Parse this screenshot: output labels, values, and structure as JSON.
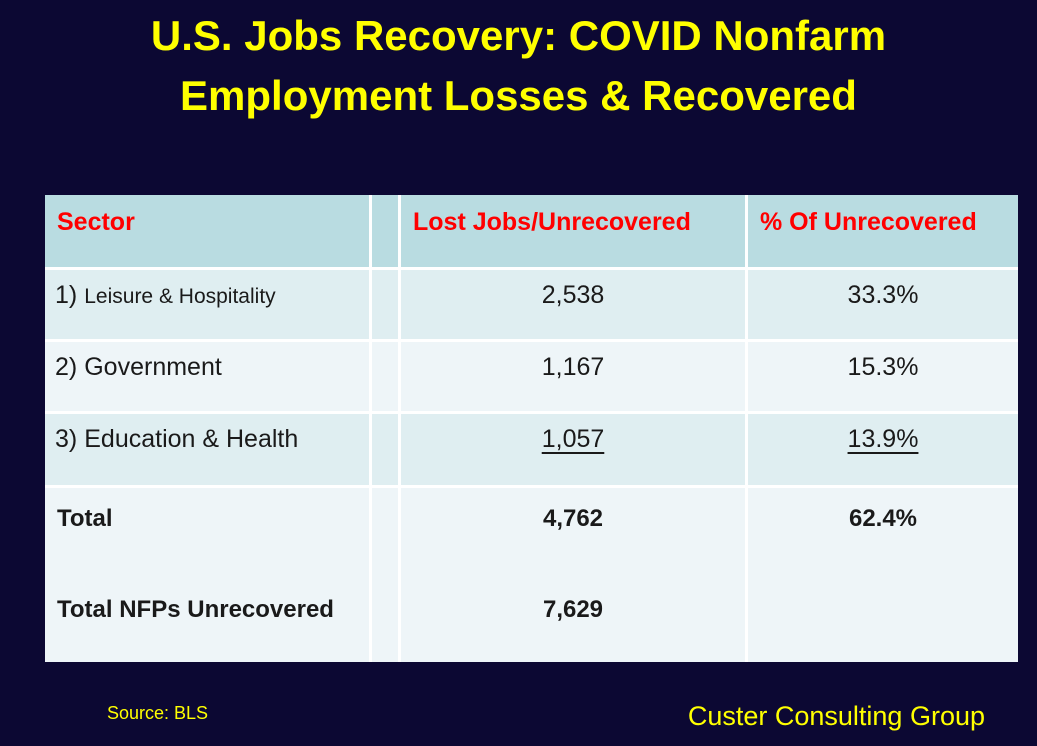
{
  "slide": {
    "title_line1": "U.S. Jobs Recovery: COVID Nonfarm",
    "title_line2": "Employment Losses & Recovered",
    "source": "Source: BLS",
    "brand": "Custer Consulting Group"
  },
  "colors": {
    "background": "#0c0833",
    "title_yellow": "#ffff00",
    "header_red": "#ff0000",
    "header_band": "#b9dce1",
    "row_band_teal": "#dfeef1",
    "row_band_light": "#eef5f8",
    "grid_line": "#ffffff",
    "body_text": "#1a1a1a"
  },
  "table": {
    "header": {
      "sector": "Sector",
      "spacer": "",
      "lost": "Lost Jobs/Unrecovered",
      "pct": "% Of Unrecovered"
    },
    "rows": [
      {
        "prefix": "1)",
        "name": "Leisure & Hospitality",
        "lost": "2,538",
        "pct": "33.3%"
      },
      {
        "prefix": "2)",
        "name": "Government",
        "lost": "1,167",
        "pct": "15.3%"
      },
      {
        "prefix": "3)",
        "name": "Education & Health",
        "lost": "1,057",
        "pct": "13.9%"
      }
    ],
    "total": {
      "label": "Total",
      "lost": "4,762",
      "pct": "62.4%"
    },
    "nfp": {
      "label": "Total NFPs Unrecovered",
      "lost": "7,629",
      "pct": ""
    }
  }
}
